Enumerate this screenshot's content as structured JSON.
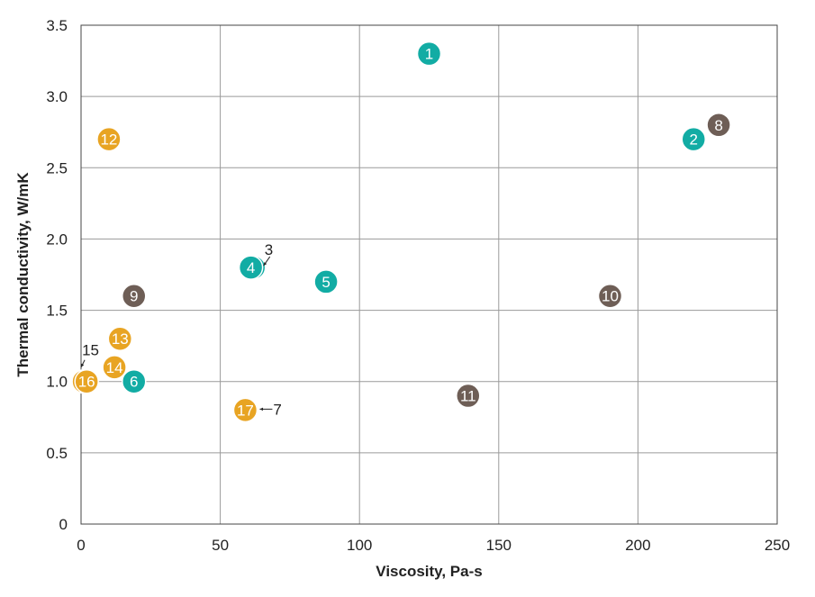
{
  "chart_data": {
    "type": "scatter",
    "xlabel": "Viscosity, Pa-s",
    "ylabel": "Thermal conductivity, W/mK",
    "xlim": [
      0,
      250
    ],
    "ylim": [
      0,
      3.5
    ],
    "x_ticks": [
      0,
      50,
      100,
      150,
      200,
      250
    ],
    "y_ticks": [
      0,
      0.5,
      1.0,
      1.5,
      2.0,
      2.5,
      3.0,
      3.5
    ],
    "y_tick_labels": [
      "0",
      "0.5",
      "1.0",
      "1.5",
      "2.0",
      "2.5",
      "3.0",
      "3.5"
    ],
    "grid": true,
    "colors": {
      "teal": "#12aca4",
      "gray": "#6e5e56",
      "orange": "#e8a423"
    },
    "points": [
      {
        "label": "1",
        "x": 125,
        "y": 3.3,
        "color": "teal"
      },
      {
        "label": "2",
        "x": 220,
        "y": 2.7,
        "color": "teal"
      },
      {
        "label": "3",
        "x": 62,
        "y": 1.8,
        "color": "teal",
        "annotation": "3"
      },
      {
        "label": "4",
        "x": 61,
        "y": 1.8,
        "color": "teal"
      },
      {
        "label": "5",
        "x": 88,
        "y": 1.7,
        "color": "teal"
      },
      {
        "label": "6",
        "x": 19,
        "y": 1.0,
        "color": "teal"
      },
      {
        "label": "7",
        "x": 59,
        "y": 0.8,
        "color": "orange",
        "annotation": "7"
      },
      {
        "label": "8",
        "x": 229,
        "y": 2.8,
        "color": "gray"
      },
      {
        "label": "9",
        "x": 19,
        "y": 1.6,
        "color": "gray"
      },
      {
        "label": "10",
        "x": 190,
        "y": 1.6,
        "color": "gray"
      },
      {
        "label": "11",
        "x": 139,
        "y": 0.9,
        "color": "gray"
      },
      {
        "label": "12",
        "x": 10,
        "y": 2.7,
        "color": "orange"
      },
      {
        "label": "13",
        "x": 14,
        "y": 1.3,
        "color": "orange"
      },
      {
        "label": "14",
        "x": 12,
        "y": 1.1,
        "color": "orange"
      },
      {
        "label": "15",
        "x": 1,
        "y": 1.0,
        "color": "orange",
        "annotation": "15"
      },
      {
        "label": "16",
        "x": 2,
        "y": 1.0,
        "color": "orange"
      },
      {
        "label": "17",
        "x": 59,
        "y": 0.8,
        "color": "orange"
      }
    ]
  }
}
